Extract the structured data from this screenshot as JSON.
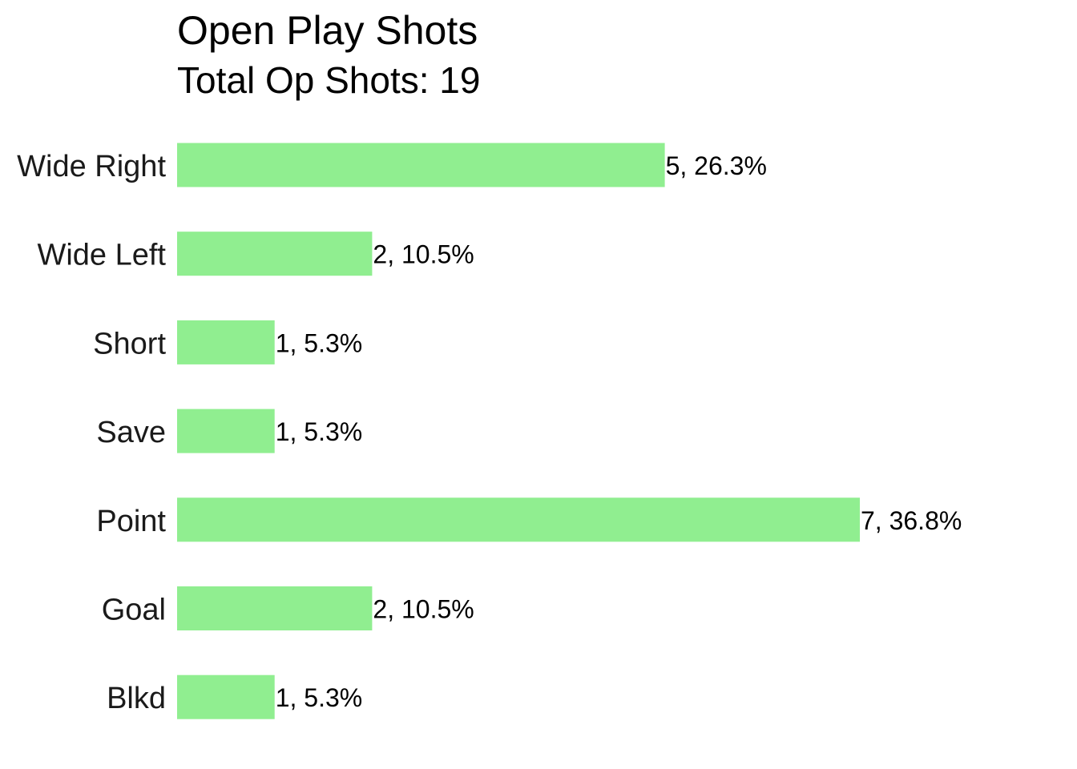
{
  "chart_data": {
    "type": "bar",
    "orientation": "horizontal",
    "title": "Open Play Shots",
    "subtitle": "Total Op Shots: 19",
    "xlabel": "",
    "ylabel": "",
    "grid": false,
    "legend": "none",
    "bar_color": "#90ee90",
    "xlim": [
      0,
      7
    ],
    "categories": [
      "Wide Right",
      "Wide Left",
      "Short",
      "Save",
      "Point",
      "Goal",
      "Blkd"
    ],
    "values": [
      5,
      2,
      1,
      1,
      7,
      2,
      1
    ],
    "percentages": [
      26.3,
      10.5,
      5.3,
      5.3,
      36.8,
      10.5,
      5.3
    ],
    "data_labels": [
      "5, 26.3%",
      "2, 10.5%",
      "1, 5.3%",
      "1, 5.3%",
      "7, 36.8%",
      "2, 10.5%",
      "1, 5.3%"
    ]
  }
}
